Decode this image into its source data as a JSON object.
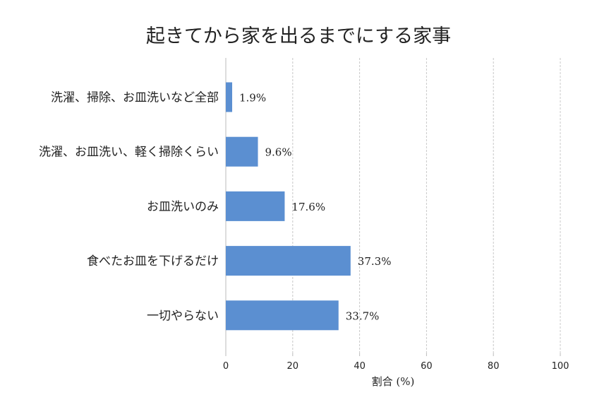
{
  "chart_data": {
    "type": "bar",
    "orientation": "horizontal",
    "title": "起きてから家を出るまでにする家事",
    "xlabel": "割合 (%)",
    "ylabel": "",
    "categories": [
      "洗濯、掃除、お皿洗いなど全部",
      "洗濯、お皿洗い、軽く掃除くらい",
      "お皿洗いのみ",
      "食べたお皿を下げるだけ",
      "一切やらない"
    ],
    "values": [
      1.9,
      9.6,
      17.6,
      37.3,
      33.7
    ],
    "value_labels": [
      "1.9%",
      "9.6%",
      "17.6%",
      "37.3%",
      "33.7%"
    ],
    "xlim": [
      0,
      100
    ],
    "xticks": [
      0,
      20,
      40,
      60,
      80,
      100
    ],
    "xtick_labels": [
      "0",
      "20",
      "40",
      "60",
      "80",
      "100"
    ],
    "grid": "vertical-dashed",
    "bar_color": "#5b8fd1",
    "legend": "none"
  }
}
